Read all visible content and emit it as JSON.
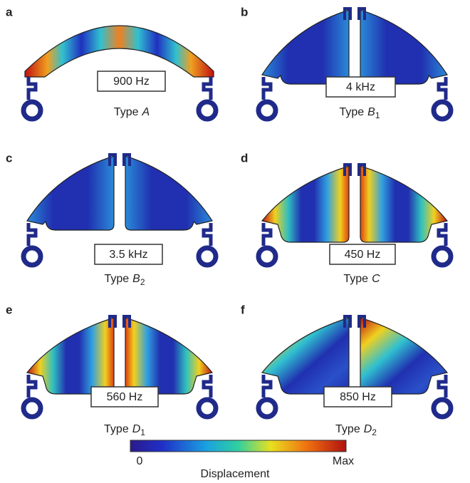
{
  "panels": [
    {
      "letter": "a",
      "frequency": "900 Hz",
      "type_prefix": "Type",
      "type_letter": "A"
    },
    {
      "letter": "b",
      "frequency": "4 kHz",
      "type_prefix": "Type",
      "type_letter": "B",
      "type_subscript": "1"
    },
    {
      "letter": "c",
      "frequency": "3.5 kHz",
      "type_prefix": "Type",
      "type_letter": "B",
      "type_subscript": "2"
    },
    {
      "letter": "d",
      "frequency": "450 Hz",
      "type_prefix": "Type",
      "type_letter": "C"
    },
    {
      "letter": "e",
      "frequency": "560 Hz",
      "type_prefix": "Type",
      "type_letter": "D",
      "type_subscript": "1"
    },
    {
      "letter": "f",
      "frequency": "850 Hz",
      "type_prefix": "Type",
      "type_letter": "D",
      "type_subscript": "2"
    }
  ],
  "colorbar": {
    "min_label": "0",
    "max_label": "Max",
    "title": "Displacement"
  }
}
